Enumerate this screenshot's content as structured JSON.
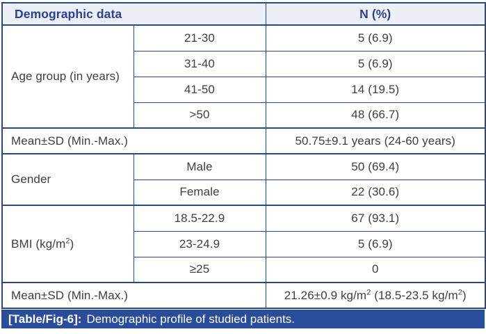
{
  "table": {
    "header": {
      "demographic_label": "Demographic data",
      "n_percent_label": "N (%)"
    },
    "age_group": {
      "label": "Age group (in years)",
      "rows": [
        {
          "category": "21-30",
          "value": "5 (6.9)"
        },
        {
          "category": "31-40",
          "value": "5 (6.9)"
        },
        {
          "category": "41-50",
          "value": "14 (19.5)"
        },
        {
          "category": ">50",
          "value": "48 (66.7)"
        }
      ],
      "mean": {
        "label": "Mean±SD (Min.-Max.)",
        "value": "50.75±9.1 years (24-60 years)"
      }
    },
    "gender": {
      "label": "Gender",
      "rows": [
        {
          "category": "Male",
          "value": "50 (69.4)"
        },
        {
          "category": "Female",
          "value": "22 (30.6)"
        }
      ]
    },
    "bmi": {
      "label_pre": "BMI (kg/m",
      "label_sup": "2",
      "label_post": ")",
      "rows": [
        {
          "category": "18.5-22.9",
          "value": "67 (93.1)"
        },
        {
          "category": "23-24.9",
          "value": "5 (6.9)"
        },
        {
          "category": "≥25",
          "value": "0"
        }
      ],
      "mean": {
        "label": "Mean±SD (Min.-Max.)",
        "value_p1": "21.26±0.9 kg/m",
        "value_s1": "2",
        "value_p2": " (18.5-23.5 kg/m",
        "value_s2": "2",
        "value_p3": ")"
      }
    }
  },
  "caption": {
    "tag": "[Table/Fig-6]:",
    "text": "Demographic profile of studied patients."
  },
  "colors": {
    "border": "#274b7f",
    "header_bg": "#edeff6",
    "header_text": "#2b3f93",
    "caption_bg": "#2a4d9b",
    "caption_text": "#ffffff",
    "body_text": "#3e3e3e"
  }
}
